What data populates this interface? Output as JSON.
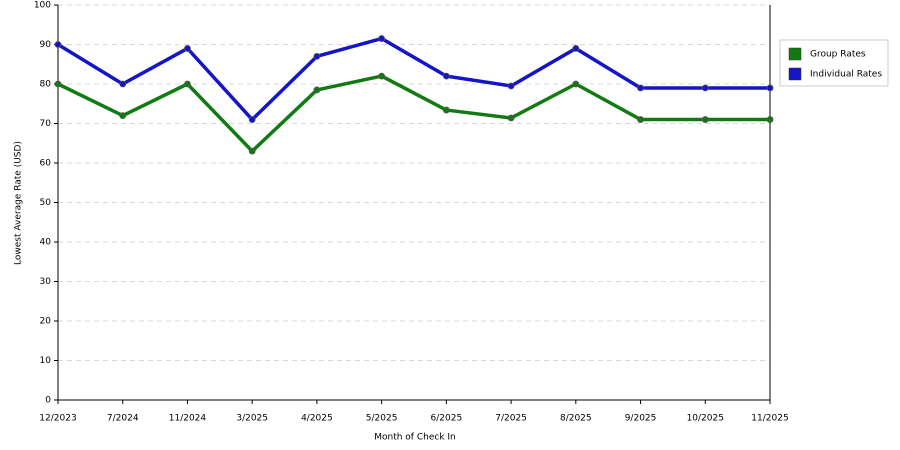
{
  "chart_data": {
    "type": "line",
    "x_label": "Month of Check In",
    "y_label": "Lowest Average Rate (USD)",
    "categories": [
      "12/2023",
      "7/2024",
      "11/2024",
      "3/2025",
      "4/2025",
      "5/2025",
      "6/2025",
      "7/2025",
      "8/2025",
      "9/2025",
      "10/2025",
      "11/2025"
    ],
    "series": [
      {
        "name": "Group Rates",
        "color": "#127a12",
        "values": [
          80,
          72,
          80,
          63,
          78.5,
          82,
          73.4,
          71.4,
          80,
          71,
          71,
          71
        ]
      },
      {
        "name": "Individual Rates",
        "color": "#1414c8",
        "values": [
          90,
          80,
          89,
          71,
          87,
          91.5,
          82,
          79.5,
          89,
          79,
          79,
          79
        ]
      }
    ],
    "ylim": [
      0,
      100
    ],
    "yticks": [
      0,
      10,
      20,
      30,
      40,
      50,
      60,
      70,
      80,
      90,
      100
    ],
    "grid": true,
    "legend": "right"
  }
}
